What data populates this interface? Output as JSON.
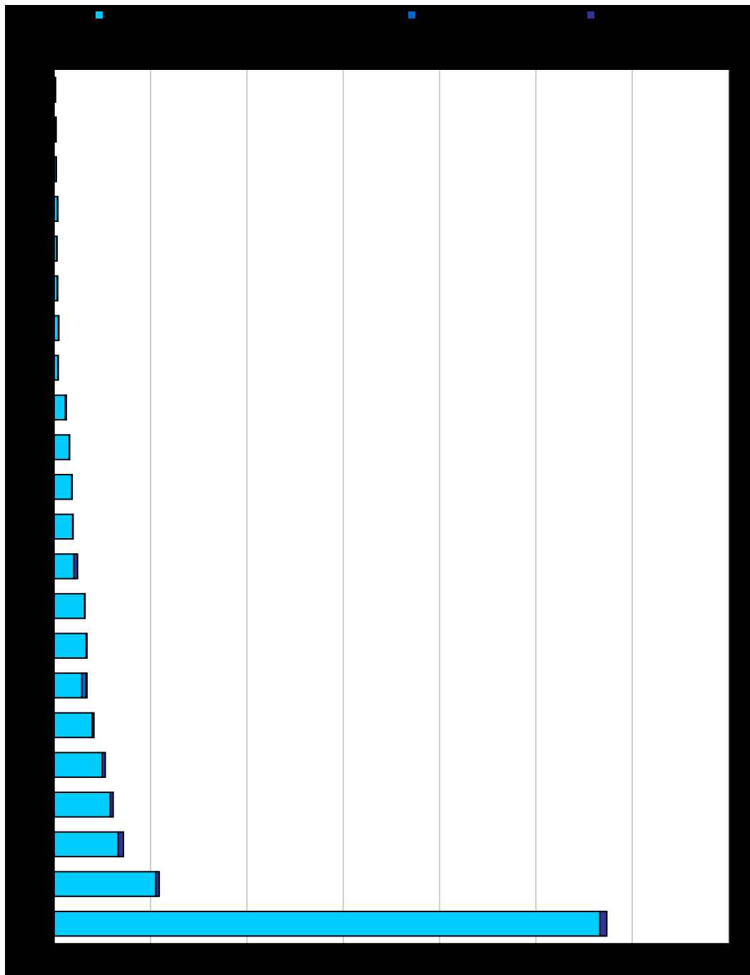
{
  "chart_data": {
    "type": "bar",
    "orientation": "horizontal",
    "stacked": true,
    "title": "",
    "xlabel": "",
    "ylabel": "",
    "xlim": [
      0,
      35000
    ],
    "x_gridlines": [
      0,
      5000,
      10000,
      15000,
      20000,
      25000,
      30000,
      35000
    ],
    "grid": true,
    "legend_position": "top",
    "categories": [
      "",
      "",
      "",
      "",
      "",
      "",
      "",
      "",
      "",
      "",
      "",
      "",
      "",
      "",
      "",
      "",
      "",
      "",
      "",
      "",
      "",
      ""
    ],
    "series": [
      {
        "name": "",
        "color": "#00CCFF",
        "values": [
          50,
          80,
          90,
          170,
          130,
          160,
          220,
          190,
          580,
          780,
          910,
          960,
          1020,
          1580,
          1660,
          1430,
          1970,
          2490,
          2910,
          3320,
          5270,
          28320
        ]
      },
      {
        "name": "",
        "color": "#0066CC",
        "values": [
          0,
          0,
          0,
          0,
          0,
          0,
          0,
          0,
          0,
          0,
          0,
          0,
          0,
          0,
          0,
          220,
          0,
          0,
          0,
          0,
          0,
          0
        ]
      },
      {
        "name": "",
        "color": "#333399",
        "values": [
          20,
          20,
          20,
          20,
          20,
          20,
          20,
          20,
          50,
          20,
          20,
          20,
          190,
          20,
          40,
          50,
          90,
          160,
          150,
          270,
          180,
          360
        ]
      }
    ]
  }
}
